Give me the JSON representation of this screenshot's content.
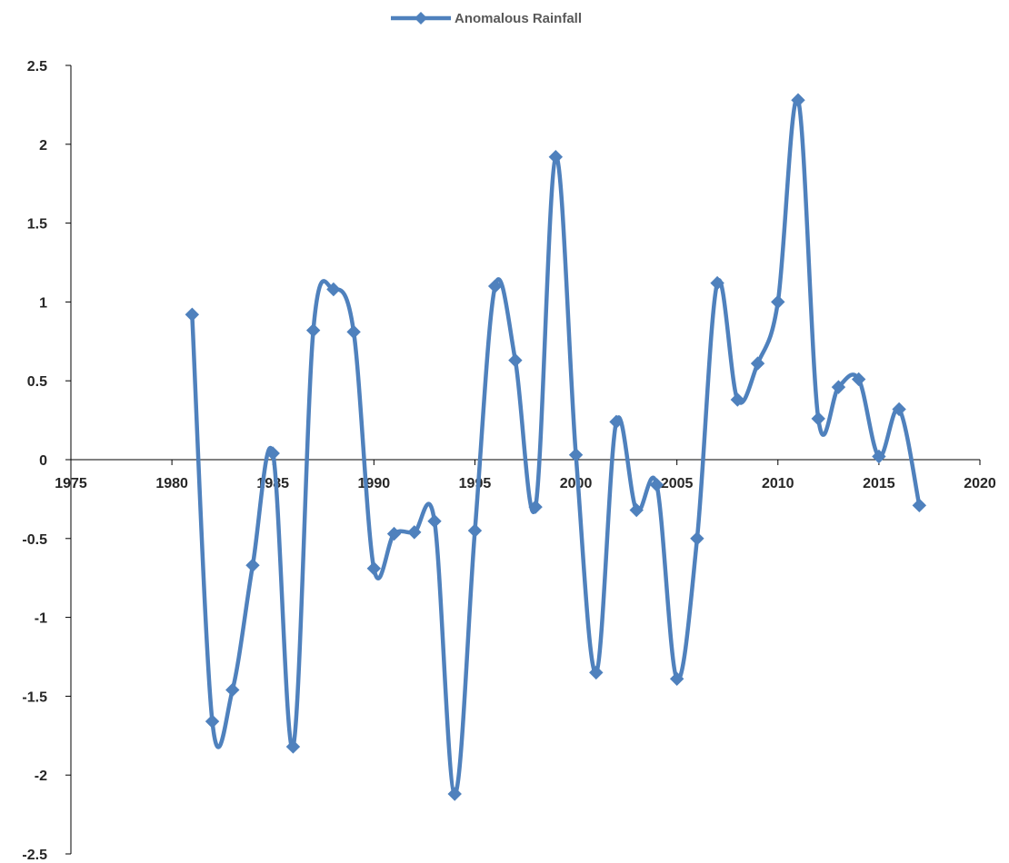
{
  "chart_data": {
    "type": "line",
    "title": "",
    "xlabel": "",
    "ylabel": "",
    "xlim": [
      1975,
      2020
    ],
    "ylim": [
      -2.5,
      2.5
    ],
    "x_ticks": [
      1975,
      1980,
      1985,
      1990,
      1995,
      2000,
      2005,
      2010,
      2015,
      2020
    ],
    "y_ticks": [
      2.5,
      2,
      1.5,
      1,
      0.5,
      0,
      -0.5,
      -1,
      -1.5,
      -2,
      -2.5
    ],
    "x_tick_labels": [
      "1975",
      "1980",
      "1985",
      "1990",
      "1995",
      "2000",
      "2005",
      "2010",
      "2015",
      "2020"
    ],
    "y_tick_labels": [
      "2.5",
      "2",
      "1.5",
      "1",
      "0.5",
      "0",
      "-0.5",
      "-1",
      "-1.5",
      "-2",
      "-2.5"
    ],
    "grid": false,
    "smooth": true,
    "marker": "diamond",
    "legend_position": "top",
    "series": [
      {
        "name": "Anomalous Rainfall",
        "color": "#4F81BD",
        "x": [
          1981,
          1982,
          1983,
          1984,
          1985,
          1986,
          1987,
          1988,
          1989,
          1990,
          1991,
          1992,
          1993,
          1994,
          1995,
          1996,
          1997,
          1998,
          1999,
          2000,
          2001,
          2002,
          2003,
          2004,
          2005,
          2006,
          2007,
          2008,
          2009,
          2010,
          2011,
          2012,
          2013,
          2014,
          2015,
          2016,
          2017
        ],
        "values": [
          0.92,
          -1.66,
          -1.46,
          -0.67,
          0.04,
          -1.82,
          0.82,
          1.08,
          0.81,
          -0.69,
          -0.47,
          -0.46,
          -0.39,
          -2.12,
          -0.45,
          1.1,
          0.63,
          -0.3,
          1.92,
          0.03,
          -1.35,
          0.24,
          -0.32,
          -0.16,
          -1.39,
          -0.5,
          1.12,
          0.38,
          0.61,
          1.0,
          2.28,
          0.26,
          0.46,
          0.51,
          0.02,
          0.32,
          -0.29
        ]
      }
    ]
  }
}
